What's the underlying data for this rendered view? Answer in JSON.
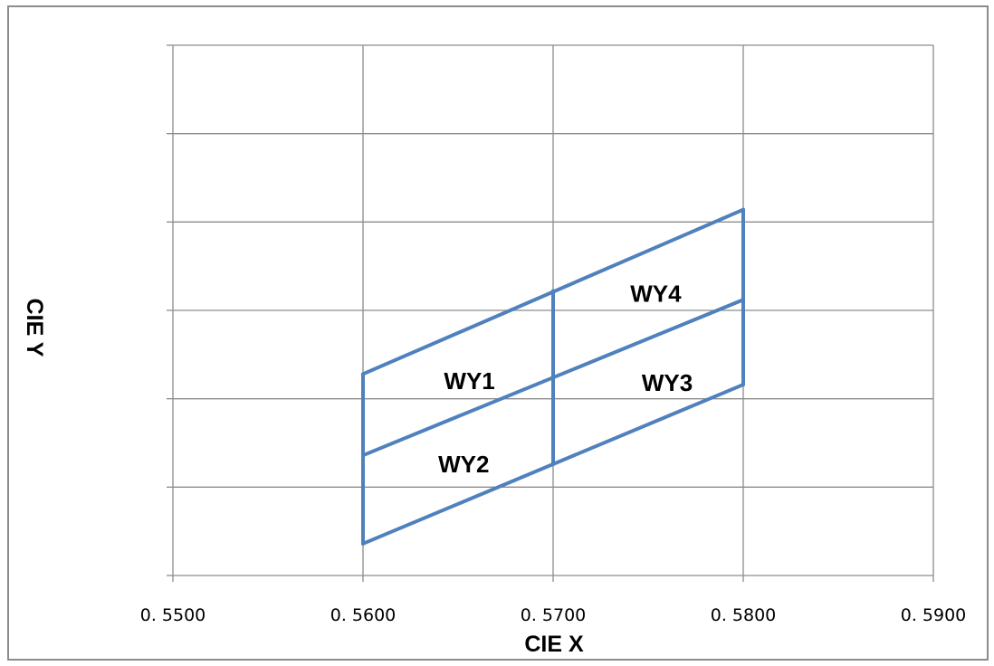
{
  "chart_data": {
    "type": "line",
    "title": "",
    "xlabel": "CIE X",
    "ylabel": "CIE Y",
    "xlim": [
      0.55,
      0.59
    ],
    "ylim": [
      0,
      6
    ],
    "x_ticks": [
      "0. 5500",
      "0. 5600",
      "0. 5700",
      "0. 5800",
      "0. 5900"
    ],
    "x_tick_values": [
      0.55,
      0.56,
      0.57,
      0.58,
      0.59
    ],
    "y_tick_count": 6,
    "y_tick_labels_visible": false,
    "grid": true,
    "legend": "none",
    "line_color": "#4f81bd",
    "segments": [
      {
        "x": [
          0.56,
          0.58
        ],
        "y": [
          2.28,
          4.14
        ]
      },
      {
        "x": [
          0.56,
          0.58
        ],
        "y": [
          1.36,
          3.12
        ]
      },
      {
        "x": [
          0.56,
          0.58
        ],
        "y": [
          0.36,
          2.16
        ]
      },
      {
        "x": [
          0.56,
          0.56
        ],
        "y": [
          0.36,
          2.28
        ]
      },
      {
        "x": [
          0.57,
          0.57
        ],
        "y": [
          1.26,
          3.22
        ]
      },
      {
        "x": [
          0.58,
          0.58
        ],
        "y": [
          2.16,
          4.14
        ]
      }
    ],
    "annotations": [
      {
        "text": "WY1",
        "x": 0.5656,
        "y": 2.2
      },
      {
        "text": "WY2",
        "x": 0.5653,
        "y": 1.26
      },
      {
        "text": "WY3",
        "x": 0.576,
        "y": 2.18
      },
      {
        "text": "WY4",
        "x": 0.5754,
        "y": 3.19
      }
    ]
  }
}
